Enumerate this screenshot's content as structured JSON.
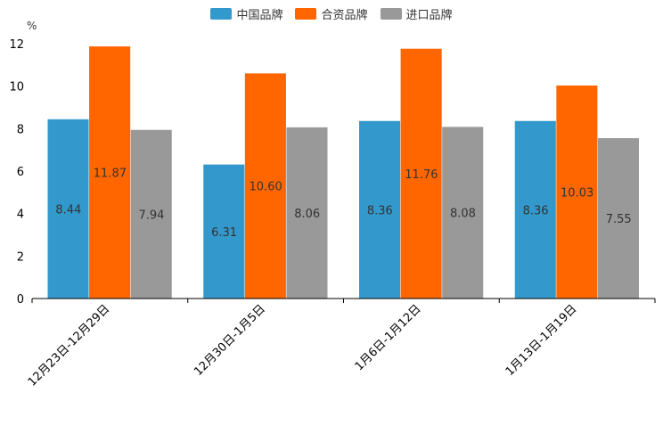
{
  "chart_data": {
    "type": "bar",
    "unit": "%",
    "categories": [
      "12月23日-12月29日",
      "12月30日-1月5日",
      "1月6日-1月12日",
      "1月13日-1月19日"
    ],
    "series": [
      {
        "name": "中国品牌",
        "color": "#3399cc",
        "values": [
          8.44,
          6.31,
          8.36,
          8.36
        ],
        "labels": [
          "8.44",
          "6.31",
          "8.36",
          "8.36"
        ]
      },
      {
        "name": "合资品牌",
        "color": "#ff6600",
        "values": [
          11.87,
          10.6,
          11.76,
          10.03
        ],
        "labels": [
          "11.87",
          "10.60",
          "11.76",
          "10.03"
        ]
      },
      {
        "name": "进口品牌",
        "color": "#999999",
        "values": [
          7.94,
          8.06,
          8.08,
          7.55
        ],
        "labels": [
          "7.94",
          "8.06",
          "8.08",
          "7.55"
        ]
      }
    ],
    "ylim": [
      0,
      12
    ],
    "yticks": [
      "0",
      "2",
      "4",
      "6",
      "8",
      "10",
      "12"
    ],
    "legend_position": "top-center"
  }
}
